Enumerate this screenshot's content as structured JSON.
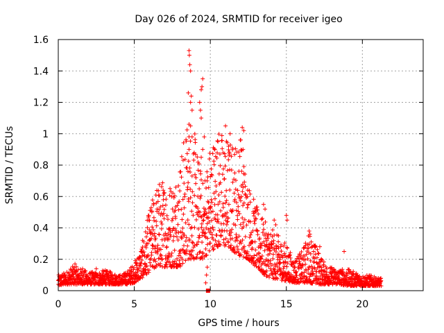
{
  "chart_data": {
    "type": "scatter",
    "title": "Day 026 of 2024, SRMTID for receiver igeo",
    "xlabel": "GPS time / hours",
    "ylabel": "SRMTID / TECUs",
    "xlim": [
      0,
      24
    ],
    "ylim": [
      0,
      1.6
    ],
    "xticks": [
      0,
      5,
      10,
      15,
      20
    ],
    "xtick_labels": [
      "0",
      "5",
      "10",
      "15",
      "20"
    ],
    "yticks": [
      0,
      0.2,
      0.4,
      0.6,
      0.8,
      1.0,
      1.2,
      1.4,
      1.6
    ],
    "ytick_labels": [
      "0",
      "0.2",
      "0.4",
      "0.6",
      "0.8",
      "1",
      "1.2",
      "1.4",
      "1.6"
    ],
    "grid": true,
    "marker": "+",
    "color": "#ff0000",
    "envelope": {
      "x": [
        0.0,
        0.5,
        1.0,
        1.5,
        2.0,
        2.5,
        3.0,
        3.5,
        4.0,
        4.5,
        5.0,
        5.5,
        6.0,
        6.5,
        7.0,
        7.5,
        8.0,
        8.5,
        9.0,
        9.5,
        10.0,
        10.5,
        11.0,
        11.5,
        12.0,
        12.5,
        13.0,
        13.5,
        14.0,
        14.5,
        15.0,
        15.5,
        16.0,
        16.5,
        17.0,
        17.5,
        18.0,
        18.5,
        19.0,
        19.5,
        20.0,
        20.5,
        21.0
      ],
      "low": [
        0.03,
        0.04,
        0.04,
        0.04,
        0.04,
        0.04,
        0.04,
        0.04,
        0.04,
        0.04,
        0.05,
        0.08,
        0.12,
        0.15,
        0.15,
        0.15,
        0.15,
        0.2,
        0.2,
        0.2,
        0.25,
        0.28,
        0.28,
        0.25,
        0.22,
        0.2,
        0.15,
        0.1,
        0.08,
        0.07,
        0.06,
        0.05,
        0.05,
        0.05,
        0.04,
        0.04,
        0.04,
        0.04,
        0.03,
        0.03,
        0.03,
        0.03,
        0.03
      ],
      "high": [
        0.1,
        0.12,
        0.16,
        0.14,
        0.12,
        0.12,
        0.13,
        0.12,
        0.1,
        0.12,
        0.18,
        0.3,
        0.52,
        0.7,
        0.72,
        0.7,
        0.85,
        1.1,
        1.0,
        0.7,
        0.95,
        1.05,
        1.0,
        0.95,
        1.0,
        0.7,
        0.55,
        0.45,
        0.4,
        0.35,
        0.3,
        0.2,
        0.25,
        0.38,
        0.28,
        0.18,
        0.15,
        0.14,
        0.14,
        0.12,
        0.1,
        0.1,
        0.08
      ],
      "point_spacing_hours": 0.01
    },
    "outliers": [
      {
        "x": 8.6,
        "y": 1.53
      },
      {
        "x": 8.62,
        "y": 1.5
      },
      {
        "x": 8.65,
        "y": 1.44
      },
      {
        "x": 8.7,
        "y": 1.4
      },
      {
        "x": 8.55,
        "y": 1.26
      },
      {
        "x": 8.7,
        "y": 1.2
      },
      {
        "x": 8.8,
        "y": 1.15
      },
      {
        "x": 8.75,
        "y": 1.24
      },
      {
        "x": 9.5,
        "y": 1.35
      },
      {
        "x": 9.45,
        "y": 1.3
      },
      {
        "x": 9.4,
        "y": 1.28
      },
      {
        "x": 9.3,
        "y": 1.2
      },
      {
        "x": 9.35,
        "y": 1.15
      },
      {
        "x": 9.4,
        "y": 1.1
      },
      {
        "x": 8.6,
        "y": 1.06
      },
      {
        "x": 8.7,
        "y": 1.05
      },
      {
        "x": 8.8,
        "y": 0.98
      },
      {
        "x": 9.6,
        "y": 0.98
      },
      {
        "x": 9.5,
        "y": 0.9
      },
      {
        "x": 9.4,
        "y": 0.85
      },
      {
        "x": 8.6,
        "y": 0.9
      },
      {
        "x": 11.0,
        "y": 1.05
      },
      {
        "x": 11.3,
        "y": 1.0
      },
      {
        "x": 12.1,
        "y": 1.04
      },
      {
        "x": 12.2,
        "y": 1.02
      },
      {
        "x": 12.0,
        "y": 0.96
      },
      {
        "x": 12.15,
        "y": 0.9
      },
      {
        "x": 11.2,
        "y": 0.92
      },
      {
        "x": 10.5,
        "y": 0.95
      },
      {
        "x": 9.75,
        "y": 0.1
      },
      {
        "x": 9.7,
        "y": 0.05
      },
      {
        "x": 9.8,
        "y": 0.15
      },
      {
        "x": 13.5,
        "y": 0.55
      },
      {
        "x": 13.6,
        "y": 0.52
      },
      {
        "x": 14.2,
        "y": 0.45
      },
      {
        "x": 14.3,
        "y": 0.42
      },
      {
        "x": 15.0,
        "y": 0.48
      },
      {
        "x": 15.05,
        "y": 0.45
      },
      {
        "x": 16.5,
        "y": 0.38
      },
      {
        "x": 16.55,
        "y": 0.36
      },
      {
        "x": 17.2,
        "y": 0.28
      },
      {
        "x": 18.8,
        "y": 0.25
      },
      {
        "x": 1.1,
        "y": 0.17
      },
      {
        "x": 1.6,
        "y": 0.14
      },
      {
        "x": 2.5,
        "y": 0.14
      },
      {
        "x": 3.1,
        "y": 0.13
      }
    ],
    "markers_square": [
      {
        "x": 9.85,
        "y": 0.0
      }
    ]
  }
}
